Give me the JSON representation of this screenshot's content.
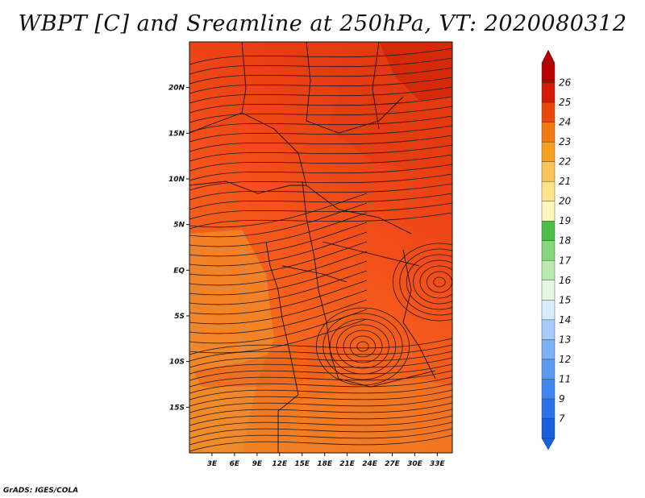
{
  "title": "WBPT [C] and Sreamline at 250hPa, VT: 2020080312",
  "credit": "GrADS: IGES/COLA",
  "map": {
    "lat_labels": [
      "20N",
      "15N",
      "10N",
      "5N",
      "EQ",
      "5S",
      "10S",
      "15S"
    ],
    "lat_values": [
      20,
      15,
      10,
      5,
      0,
      -5,
      -10,
      -15
    ],
    "lon_labels": [
      "3E",
      "6E",
      "9E",
      "12E",
      "15E",
      "18E",
      "21E",
      "24E",
      "27E",
      "30E",
      "33E"
    ],
    "lon_values": [
      3,
      6,
      9,
      12,
      15,
      18,
      21,
      24,
      27,
      30,
      33
    ],
    "lon_range": [
      0,
      35
    ],
    "lat_range": [
      -20,
      25
    ]
  },
  "colorbar": {
    "labels": [
      "7",
      "9",
      "11",
      "12",
      "13",
      "14",
      "15",
      "16",
      "17",
      "18",
      "19",
      "20",
      "21",
      "22",
      "23",
      "24",
      "25",
      "26"
    ],
    "colors": [
      "#1a5fe0",
      "#2a72ea",
      "#3f86f0",
      "#5a9af3",
      "#7cb2f6",
      "#a6cdf9",
      "#d6ecfb",
      "#e6f7e6",
      "#b9eab0",
      "#84d77b",
      "#4bbf44",
      "#fff7b8",
      "#fde38b",
      "#fbc45a",
      "#f7a21e",
      "#f27a10",
      "#e8480a",
      "#d21a05",
      "#b80000"
    ],
    "gradient_stops": [
      {
        "c": "#f0a030"
      },
      {
        "c": "#ff5a10"
      },
      {
        "c": "#e83a08"
      },
      {
        "c": "#d02a05"
      }
    ]
  }
}
